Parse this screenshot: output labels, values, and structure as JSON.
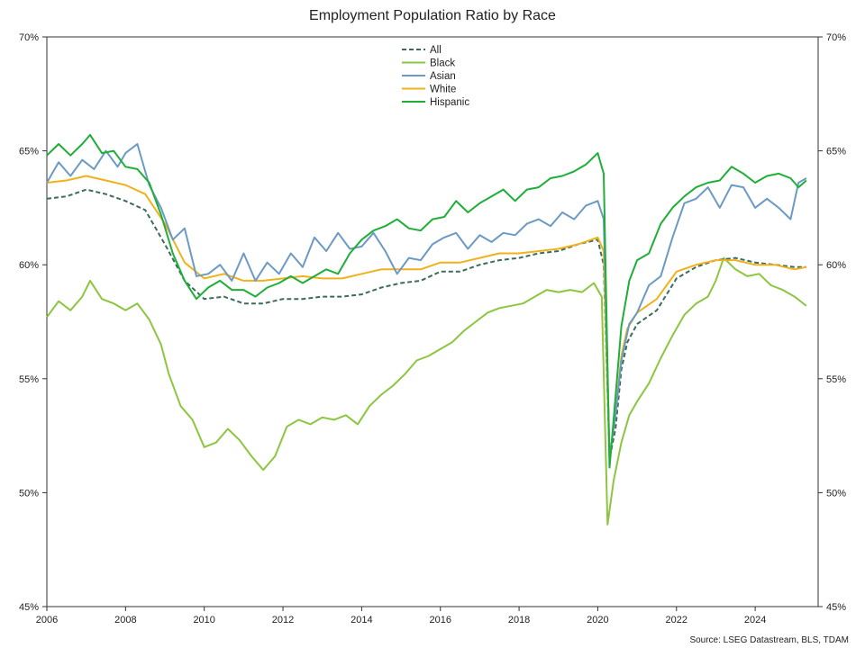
{
  "chart_data": {
    "type": "line",
    "title": "Employment Population Ratio by Race",
    "source": "Source: LSEG Datastream, BLS, TDAM",
    "xlabel": "",
    "ylabel": "",
    "xlim": [
      2006,
      2025.6
    ],
    "ylim": [
      45,
      70
    ],
    "x_ticks": [
      2006,
      2008,
      2010,
      2012,
      2014,
      2016,
      2018,
      2020,
      2022,
      2024
    ],
    "y_ticks": [
      45,
      50,
      55,
      60,
      65,
      70
    ],
    "y_tick_labels": [
      "45%",
      "50%",
      "55%",
      "60%",
      "65%",
      "70%"
    ],
    "grid": false,
    "legend_position": "top-center",
    "series": [
      {
        "name": "All",
        "color": "#3d6b5e",
        "dashed": true,
        "points": [
          [
            2006.0,
            62.9
          ],
          [
            2006.5,
            63.0
          ],
          [
            2007.0,
            63.3
          ],
          [
            2007.5,
            63.1
          ],
          [
            2008.0,
            62.8
          ],
          [
            2008.5,
            62.4
          ],
          [
            2009.0,
            60.9
          ],
          [
            2009.5,
            59.3
          ],
          [
            2010.0,
            58.5
          ],
          [
            2010.5,
            58.6
          ],
          [
            2011.0,
            58.3
          ],
          [
            2011.5,
            58.3
          ],
          [
            2012.0,
            58.5
          ],
          [
            2012.5,
            58.5
          ],
          [
            2013.0,
            58.6
          ],
          [
            2013.5,
            58.6
          ],
          [
            2014.0,
            58.7
          ],
          [
            2014.5,
            59.0
          ],
          [
            2015.0,
            59.2
          ],
          [
            2015.5,
            59.3
          ],
          [
            2016.0,
            59.7
          ],
          [
            2016.5,
            59.7
          ],
          [
            2017.0,
            60.0
          ],
          [
            2017.5,
            60.2
          ],
          [
            2018.0,
            60.3
          ],
          [
            2018.5,
            60.5
          ],
          [
            2019.0,
            60.6
          ],
          [
            2019.5,
            60.9
          ],
          [
            2020.0,
            61.1
          ],
          [
            2020.15,
            60.0
          ],
          [
            2020.3,
            51.5
          ],
          [
            2020.45,
            52.8
          ],
          [
            2020.6,
            55.4
          ],
          [
            2020.75,
            56.6
          ],
          [
            2021.0,
            57.4
          ],
          [
            2021.5,
            58.0
          ],
          [
            2022.0,
            59.4
          ],
          [
            2022.5,
            59.9
          ],
          [
            2023.0,
            60.2
          ],
          [
            2023.5,
            60.3
          ],
          [
            2024.0,
            60.1
          ],
          [
            2024.5,
            60.0
          ],
          [
            2025.0,
            59.9
          ],
          [
            2025.3,
            59.9
          ]
        ]
      },
      {
        "name": "Black",
        "color": "#8cc63f",
        "dashed": false,
        "points": [
          [
            2006.0,
            57.7
          ],
          [
            2006.3,
            58.4
          ],
          [
            2006.6,
            58.0
          ],
          [
            2006.9,
            58.6
          ],
          [
            2007.1,
            59.3
          ],
          [
            2007.4,
            58.5
          ],
          [
            2007.7,
            58.3
          ],
          [
            2008.0,
            58.0
          ],
          [
            2008.3,
            58.3
          ],
          [
            2008.6,
            57.6
          ],
          [
            2008.9,
            56.5
          ],
          [
            2009.1,
            55.2
          ],
          [
            2009.4,
            53.8
          ],
          [
            2009.7,
            53.2
          ],
          [
            2010.0,
            52.0
          ],
          [
            2010.3,
            52.2
          ],
          [
            2010.6,
            52.8
          ],
          [
            2010.9,
            52.3
          ],
          [
            2011.2,
            51.6
          ],
          [
            2011.5,
            51.0
          ],
          [
            2011.8,
            51.6
          ],
          [
            2012.1,
            52.9
          ],
          [
            2012.4,
            53.2
          ],
          [
            2012.7,
            53.0
          ],
          [
            2013.0,
            53.3
          ],
          [
            2013.3,
            53.2
          ],
          [
            2013.6,
            53.4
          ],
          [
            2013.9,
            53.0
          ],
          [
            2014.2,
            53.8
          ],
          [
            2014.5,
            54.3
          ],
          [
            2014.8,
            54.7
          ],
          [
            2015.1,
            55.2
          ],
          [
            2015.4,
            55.8
          ],
          [
            2015.7,
            56.0
          ],
          [
            2016.0,
            56.3
          ],
          [
            2016.3,
            56.6
          ],
          [
            2016.6,
            57.1
          ],
          [
            2016.9,
            57.5
          ],
          [
            2017.2,
            57.9
          ],
          [
            2017.5,
            58.1
          ],
          [
            2017.8,
            58.2
          ],
          [
            2018.1,
            58.3
          ],
          [
            2018.4,
            58.6
          ],
          [
            2018.7,
            58.9
          ],
          [
            2019.0,
            58.8
          ],
          [
            2019.3,
            58.9
          ],
          [
            2019.6,
            58.8
          ],
          [
            2019.9,
            59.2
          ],
          [
            2020.1,
            58.6
          ],
          [
            2020.25,
            48.6
          ],
          [
            2020.4,
            50.5
          ],
          [
            2020.6,
            52.2
          ],
          [
            2020.8,
            53.4
          ],
          [
            2021.0,
            54.0
          ],
          [
            2021.3,
            54.8
          ],
          [
            2021.6,
            55.9
          ],
          [
            2021.9,
            56.9
          ],
          [
            2022.2,
            57.8
          ],
          [
            2022.5,
            58.3
          ],
          [
            2022.8,
            58.6
          ],
          [
            2023.0,
            59.3
          ],
          [
            2023.2,
            60.3
          ],
          [
            2023.5,
            59.8
          ],
          [
            2023.8,
            59.5
          ],
          [
            2024.1,
            59.6
          ],
          [
            2024.4,
            59.1
          ],
          [
            2024.7,
            58.9
          ],
          [
            2025.0,
            58.6
          ],
          [
            2025.3,
            58.2
          ]
        ]
      },
      {
        "name": "Asian",
        "color": "#6b9ac4",
        "dashed": false,
        "points": [
          [
            2006.0,
            63.6
          ],
          [
            2006.3,
            64.5
          ],
          [
            2006.6,
            63.9
          ],
          [
            2006.9,
            64.6
          ],
          [
            2007.2,
            64.2
          ],
          [
            2007.5,
            65.0
          ],
          [
            2007.8,
            64.3
          ],
          [
            2008.0,
            64.9
          ],
          [
            2008.3,
            65.3
          ],
          [
            2008.6,
            63.5
          ],
          [
            2008.9,
            62.5
          ],
          [
            2009.2,
            61.1
          ],
          [
            2009.5,
            61.6
          ],
          [
            2009.8,
            59.5
          ],
          [
            2010.1,
            59.6
          ],
          [
            2010.4,
            60.0
          ],
          [
            2010.7,
            59.3
          ],
          [
            2011.0,
            60.5
          ],
          [
            2011.3,
            59.3
          ],
          [
            2011.6,
            60.1
          ],
          [
            2011.9,
            59.6
          ],
          [
            2012.2,
            60.5
          ],
          [
            2012.5,
            59.9
          ],
          [
            2012.8,
            61.2
          ],
          [
            2013.1,
            60.6
          ],
          [
            2013.4,
            61.4
          ],
          [
            2013.7,
            60.7
          ],
          [
            2014.0,
            60.8
          ],
          [
            2014.3,
            61.4
          ],
          [
            2014.6,
            60.6
          ],
          [
            2014.9,
            59.6
          ],
          [
            2015.2,
            60.3
          ],
          [
            2015.5,
            60.2
          ],
          [
            2015.8,
            60.9
          ],
          [
            2016.1,
            61.2
          ],
          [
            2016.4,
            61.4
          ],
          [
            2016.7,
            60.7
          ],
          [
            2017.0,
            61.3
          ],
          [
            2017.3,
            61.0
          ],
          [
            2017.6,
            61.4
          ],
          [
            2017.9,
            61.3
          ],
          [
            2018.2,
            61.8
          ],
          [
            2018.5,
            62.0
          ],
          [
            2018.8,
            61.7
          ],
          [
            2019.1,
            62.3
          ],
          [
            2019.4,
            62.0
          ],
          [
            2019.7,
            62.6
          ],
          [
            2020.0,
            62.8
          ],
          [
            2020.15,
            62.0
          ],
          [
            2020.3,
            51.6
          ],
          [
            2020.45,
            53.4
          ],
          [
            2020.6,
            55.8
          ],
          [
            2020.8,
            57.4
          ],
          [
            2021.0,
            57.9
          ],
          [
            2021.3,
            59.1
          ],
          [
            2021.6,
            59.5
          ],
          [
            2021.9,
            61.2
          ],
          [
            2022.2,
            62.7
          ],
          [
            2022.5,
            62.9
          ],
          [
            2022.8,
            63.4
          ],
          [
            2023.1,
            62.5
          ],
          [
            2023.4,
            63.5
          ],
          [
            2023.7,
            63.4
          ],
          [
            2024.0,
            62.5
          ],
          [
            2024.3,
            62.9
          ],
          [
            2024.6,
            62.5
          ],
          [
            2024.9,
            62.0
          ],
          [
            2025.1,
            63.6
          ],
          [
            2025.3,
            63.8
          ]
        ]
      },
      {
        "name": "White",
        "color": "#f0b21b",
        "dashed": false,
        "points": [
          [
            2006.0,
            63.6
          ],
          [
            2006.5,
            63.7
          ],
          [
            2007.0,
            63.9
          ],
          [
            2007.5,
            63.7
          ],
          [
            2008.0,
            63.5
          ],
          [
            2008.5,
            63.1
          ],
          [
            2009.0,
            61.8
          ],
          [
            2009.5,
            60.1
          ],
          [
            2010.0,
            59.4
          ],
          [
            2010.5,
            59.6
          ],
          [
            2011.0,
            59.3
          ],
          [
            2011.5,
            59.3
          ],
          [
            2012.0,
            59.4
          ],
          [
            2012.5,
            59.5
          ],
          [
            2013.0,
            59.4
          ],
          [
            2013.5,
            59.4
          ],
          [
            2014.0,
            59.6
          ],
          [
            2014.5,
            59.8
          ],
          [
            2015.0,
            59.8
          ],
          [
            2015.5,
            59.8
          ],
          [
            2016.0,
            60.1
          ],
          [
            2016.5,
            60.1
          ],
          [
            2017.0,
            60.3
          ],
          [
            2017.5,
            60.5
          ],
          [
            2018.0,
            60.5
          ],
          [
            2018.5,
            60.6
          ],
          [
            2019.0,
            60.7
          ],
          [
            2019.5,
            60.9
          ],
          [
            2020.0,
            61.2
          ],
          [
            2020.15,
            60.6
          ],
          [
            2020.3,
            51.5
          ],
          [
            2020.45,
            53.5
          ],
          [
            2020.6,
            56.0
          ],
          [
            2020.75,
            57.2
          ],
          [
            2021.0,
            57.9
          ],
          [
            2021.5,
            58.5
          ],
          [
            2022.0,
            59.7
          ],
          [
            2022.5,
            60.0
          ],
          [
            2023.0,
            60.2
          ],
          [
            2023.5,
            60.2
          ],
          [
            2024.0,
            60.0
          ],
          [
            2024.5,
            60.0
          ],
          [
            2025.0,
            59.8
          ],
          [
            2025.3,
            59.9
          ]
        ]
      },
      {
        "name": "Hispanic",
        "color": "#1fae37",
        "dashed": false,
        "points": [
          [
            2006.0,
            64.8
          ],
          [
            2006.3,
            65.3
          ],
          [
            2006.6,
            64.8
          ],
          [
            2006.9,
            65.3
          ],
          [
            2007.1,
            65.7
          ],
          [
            2007.4,
            64.9
          ],
          [
            2007.7,
            65.0
          ],
          [
            2008.0,
            64.3
          ],
          [
            2008.3,
            64.2
          ],
          [
            2008.6,
            63.6
          ],
          [
            2008.9,
            62.2
          ],
          [
            2009.2,
            60.5
          ],
          [
            2009.5,
            59.3
          ],
          [
            2009.8,
            58.5
          ],
          [
            2010.1,
            59.0
          ],
          [
            2010.4,
            59.3
          ],
          [
            2010.7,
            58.9
          ],
          [
            2011.0,
            58.9
          ],
          [
            2011.3,
            58.6
          ],
          [
            2011.6,
            59.0
          ],
          [
            2011.9,
            59.2
          ],
          [
            2012.2,
            59.5
          ],
          [
            2012.5,
            59.2
          ],
          [
            2012.8,
            59.5
          ],
          [
            2013.1,
            59.8
          ],
          [
            2013.4,
            59.6
          ],
          [
            2013.7,
            60.5
          ],
          [
            2014.0,
            61.1
          ],
          [
            2014.3,
            61.5
          ],
          [
            2014.6,
            61.7
          ],
          [
            2014.9,
            62.0
          ],
          [
            2015.2,
            61.6
          ],
          [
            2015.5,
            61.5
          ],
          [
            2015.8,
            62.0
          ],
          [
            2016.1,
            62.1
          ],
          [
            2016.4,
            62.8
          ],
          [
            2016.7,
            62.3
          ],
          [
            2017.0,
            62.7
          ],
          [
            2017.3,
            63.0
          ],
          [
            2017.6,
            63.3
          ],
          [
            2017.9,
            62.8
          ],
          [
            2018.2,
            63.3
          ],
          [
            2018.5,
            63.4
          ],
          [
            2018.8,
            63.8
          ],
          [
            2019.1,
            63.9
          ],
          [
            2019.4,
            64.1
          ],
          [
            2019.7,
            64.4
          ],
          [
            2020.0,
            64.9
          ],
          [
            2020.15,
            64.0
          ],
          [
            2020.3,
            51.1
          ],
          [
            2020.45,
            54.2
          ],
          [
            2020.6,
            57.3
          ],
          [
            2020.8,
            59.3
          ],
          [
            2021.0,
            60.2
          ],
          [
            2021.3,
            60.5
          ],
          [
            2021.6,
            61.8
          ],
          [
            2021.9,
            62.5
          ],
          [
            2022.2,
            63.0
          ],
          [
            2022.5,
            63.4
          ],
          [
            2022.8,
            63.6
          ],
          [
            2023.1,
            63.7
          ],
          [
            2023.4,
            64.3
          ],
          [
            2023.7,
            64.0
          ],
          [
            2024.0,
            63.6
          ],
          [
            2024.3,
            63.9
          ],
          [
            2024.6,
            64.0
          ],
          [
            2024.9,
            63.8
          ],
          [
            2025.1,
            63.4
          ],
          [
            2025.3,
            63.7
          ]
        ]
      }
    ]
  }
}
